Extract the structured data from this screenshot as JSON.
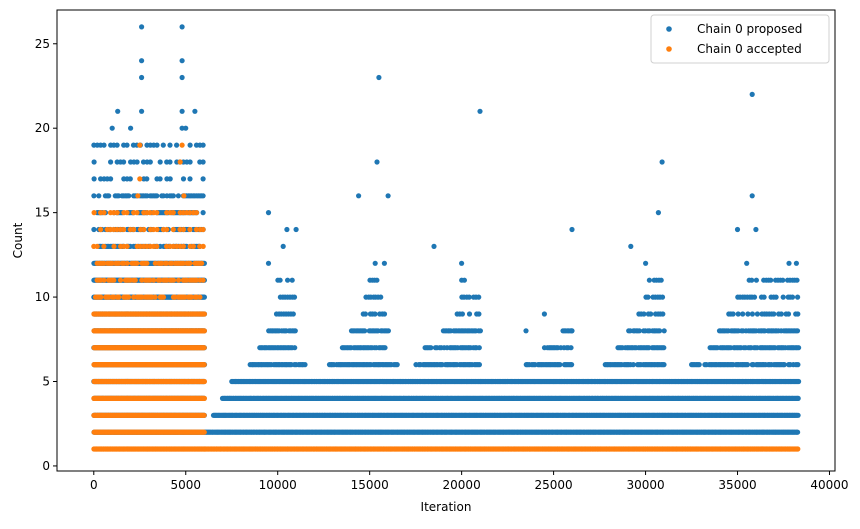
{
  "chart_data": {
    "type": "scatter",
    "xlabel": "Iteration",
    "ylabel": "Count",
    "xlim": [
      -2000,
      40300
    ],
    "ylim": [
      -0.3,
      27.0
    ],
    "xticks": [
      0,
      5000,
      10000,
      15000,
      20000,
      25000,
      30000,
      35000,
      40000
    ],
    "yticks": [
      0,
      5,
      10,
      15,
      20,
      25
    ],
    "grid": false,
    "legend_position": "top-right",
    "series": [
      {
        "name": "Chain 0 proposed",
        "color": "#1f77b4",
        "bands": [
          {
            "y": 2,
            "segments": [
              [
                6000,
                38300
              ]
            ],
            "density": "continuous"
          },
          {
            "y": 3,
            "segments": [
              [
                6500,
                38300
              ]
            ],
            "density": "continuous"
          },
          {
            "y": 4,
            "segments": [
              [
                7000,
                38300
              ]
            ],
            "density": "dense"
          },
          {
            "y": 5,
            "segments": [
              [
                7500,
                38300
              ]
            ],
            "density": "dense"
          },
          {
            "y": 6,
            "segments": [
              [
                8500,
                11500
              ],
              [
                12800,
                16500
              ],
              [
                17500,
                21000
              ],
              [
                23500,
                26000
              ],
              [
                27800,
                31000
              ],
              [
                32500,
                38300
              ]
            ],
            "density": "medium"
          },
          {
            "y": 7,
            "segments": [
              [
                9000,
                11000
              ],
              [
                13500,
                16000
              ],
              [
                18000,
                21000
              ],
              [
                24500,
                26000
              ],
              [
                28500,
                31000
              ],
              [
                33500,
                38300
              ]
            ],
            "density": "medium"
          },
          {
            "y": 8,
            "segments": [
              [
                9500,
                11000
              ],
              [
                14000,
                16000
              ],
              [
                19000,
                21000
              ],
              [
                25500,
                26000
              ],
              [
                29000,
                31000
              ],
              [
                34000,
                38300
              ]
            ],
            "density": "medium"
          },
          {
            "y": 9,
            "segments": [
              [
                9800,
                11000
              ],
              [
                14500,
                15800
              ],
              [
                19500,
                21000
              ],
              [
                29500,
                31000
              ],
              [
                34500,
                38300
              ]
            ],
            "density": "sparse"
          },
          {
            "y": 10,
            "segments": [
              [
                10000,
                11000
              ],
              [
                14800,
                15800
              ],
              [
                20000,
                21000
              ],
              [
                30000,
                31000
              ],
              [
                35000,
                38300
              ]
            ],
            "density": "sparse"
          },
          {
            "y": 11,
            "segments": [
              [
                10000,
                10800
              ],
              [
                15000,
                15600
              ],
              [
                20000,
                21000
              ],
              [
                30200,
                30900
              ],
              [
                35500,
                38300
              ]
            ],
            "density": "sparse"
          }
        ],
        "points": [
          [
            2600,
            26
          ],
          [
            4800,
            26
          ],
          [
            2600,
            24
          ],
          [
            4800,
            24
          ],
          [
            2600,
            23
          ],
          [
            4800,
            23
          ],
          [
            1300,
            21
          ],
          [
            2600,
            21
          ],
          [
            4800,
            21
          ],
          [
            5500,
            21
          ],
          [
            1000,
            20
          ],
          [
            2000,
            20
          ],
          [
            4800,
            20
          ],
          [
            5000,
            20
          ],
          [
            15500,
            23
          ],
          [
            21000,
            21
          ],
          [
            35800,
            22
          ],
          [
            15400,
            18
          ],
          [
            30900,
            18
          ],
          [
            14400,
            16
          ],
          [
            16000,
            16
          ],
          [
            35800,
            16
          ],
          [
            9500,
            15
          ],
          [
            30700,
            15
          ],
          [
            10500,
            14
          ],
          [
            11000,
            14
          ],
          [
            26000,
            14
          ],
          [
            35000,
            14
          ],
          [
            36000,
            14
          ],
          [
            10300,
            13
          ],
          [
            18500,
            13
          ],
          [
            29200,
            13
          ],
          [
            20000,
            12
          ],
          [
            9500,
            12
          ],
          [
            15300,
            12
          ],
          [
            15800,
            12
          ],
          [
            30000,
            12
          ],
          [
            35500,
            12
          ],
          [
            37800,
            12
          ],
          [
            38200,
            12
          ],
          [
            24500,
            9
          ],
          [
            23500,
            8
          ],
          [
            26000,
            8
          ]
        ],
        "dense_burnin": {
          "x_range": [
            0,
            6000
          ],
          "y_values": [
            2,
            3,
            4,
            5,
            6,
            7,
            8,
            9,
            10,
            11,
            12,
            13,
            14,
            15,
            16,
            17,
            18,
            19
          ]
        }
      },
      {
        "name": "Chain 0 accepted",
        "color": "#ff7f0e",
        "bands": [
          {
            "y": 1,
            "segments": [
              [
                6000,
                38300
              ]
            ],
            "density": "continuous"
          }
        ],
        "points": [
          [
            2500,
            19
          ],
          [
            4800,
            19
          ],
          [
            4700,
            18
          ],
          [
            2500,
            17
          ],
          [
            4900,
            16
          ],
          [
            2400,
            16
          ]
        ],
        "dense_burnin": {
          "x_range": [
            0,
            6000
          ],
          "y_values": [
            1,
            2,
            3,
            4,
            5,
            6,
            7,
            8,
            9,
            10,
            11,
            12,
            13,
            14,
            15
          ]
        }
      }
    ]
  }
}
